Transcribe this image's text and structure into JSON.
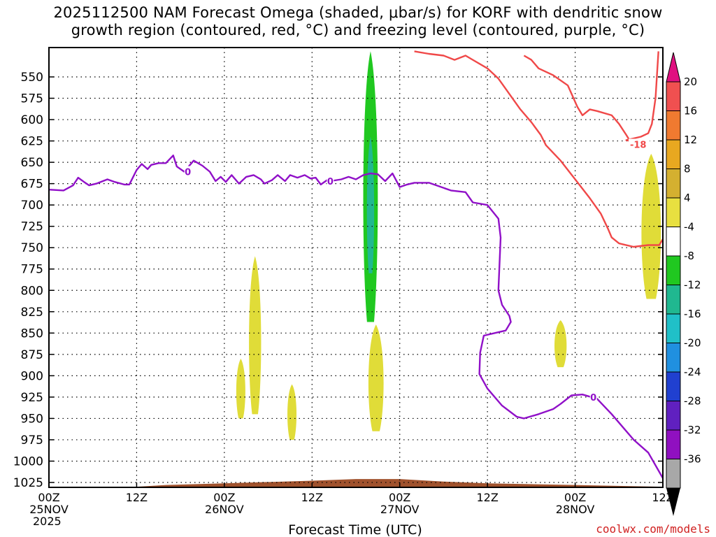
{
  "title": {
    "line1": "2025112500 NAM Forecast Omega (shaded, μbar/s) for KORF with dendritic snow",
    "line2": "growth region (contoured, red, °C) and freezing level (contoured, purple, °C)"
  },
  "credit": "coolwx.com/models",
  "chart_data": {
    "type": "contour",
    "title": "2025112500 NAM Forecast Omega (shaded, μbar/s) for KORF with dendritic snow growth region (contoured, red, °C) and freezing level (contoured, purple, °C)",
    "xlabel": "Forecast Time (UTC)",
    "ylabel": "",
    "xlim": [
      0,
      84
    ],
    "ylim": [
      1040,
      520
    ],
    "y_ticks": [
      550,
      575,
      600,
      625,
      650,
      675,
      700,
      725,
      750,
      775,
      800,
      825,
      850,
      875,
      900,
      925,
      950,
      975,
      1000,
      1025
    ],
    "x_ticks": [
      {
        "t": 0,
        "lines": [
          "00Z",
          "25NOV",
          "2025"
        ]
      },
      {
        "t": 12,
        "lines": [
          "12Z"
        ]
      },
      {
        "t": 24,
        "lines": [
          "00Z",
          "26NOV"
        ]
      },
      {
        "t": 36,
        "lines": [
          "12Z"
        ]
      },
      {
        "t": 48,
        "lines": [
          "00Z",
          "27NOV"
        ]
      },
      {
        "t": 60,
        "lines": [
          "12Z"
        ]
      },
      {
        "t": 72,
        "lines": [
          "00Z",
          "28NOV"
        ]
      },
      {
        "t": 84,
        "lines": [
          "12Z"
        ]
      }
    ],
    "colorbar": {
      "labels": [
        "20",
        "16",
        "12",
        "8",
        "4",
        "-4",
        "-8",
        "-12",
        "-16",
        "-20",
        "-24",
        "-28",
        "-32",
        "-36"
      ],
      "colors": [
        "#f05050",
        "#f07a30",
        "#e8a820",
        "#d4b030",
        "#e8e040",
        "#ffffff",
        "#20c820",
        "#20b890",
        "#20c0c8",
        "#2090e0",
        "#2040d0",
        "#6020c0",
        "#9010c0",
        "#a8a8a8"
      ],
      "top_arrow_color": "#e01080",
      "bottom_arrow_color": "#000000"
    },
    "series": [
      {
        "name": "Freezing level 0°C (purple)",
        "color": "#9010c8",
        "label": "0",
        "points": [
          [
            0,
            682
          ],
          [
            2,
            683
          ],
          [
            3.3,
            677
          ],
          [
            4,
            668
          ],
          [
            4.8,
            673
          ],
          [
            5.5,
            677
          ],
          [
            6.5,
            675
          ],
          [
            8,
            670
          ],
          [
            9,
            673
          ],
          [
            10.3,
            676
          ],
          [
            11,
            676
          ],
          [
            12,
            659
          ],
          [
            12.7,
            652
          ],
          [
            13.5,
            658
          ],
          [
            14,
            653
          ],
          [
            15,
            651
          ],
          [
            16,
            651
          ],
          [
            17,
            642
          ],
          [
            17.5,
            655
          ],
          [
            18.5,
            661
          ],
          [
            19.8,
            648
          ],
          [
            21,
            654
          ],
          [
            22,
            661
          ],
          [
            22.8,
            672
          ],
          [
            23.5,
            667
          ],
          [
            24.2,
            673
          ],
          [
            25,
            665
          ],
          [
            26,
            675
          ],
          [
            27,
            667
          ],
          [
            28,
            665
          ],
          [
            29,
            670
          ],
          [
            29.5,
            675
          ],
          [
            30.5,
            671
          ],
          [
            31.3,
            665
          ],
          [
            32.3,
            672
          ],
          [
            33,
            665
          ],
          [
            34,
            668
          ],
          [
            35,
            665
          ],
          [
            35.8,
            669
          ],
          [
            36.5,
            668
          ],
          [
            37.2,
            676
          ],
          [
            38.2,
            670
          ],
          [
            38.5,
            672
          ],
          [
            40,
            670
          ],
          [
            41,
            667
          ],
          [
            42,
            670
          ],
          [
            43,
            665
          ],
          [
            44,
            663
          ],
          [
            45,
            664
          ],
          [
            46,
            672
          ],
          [
            47,
            663
          ],
          [
            48,
            679
          ],
          [
            49,
            676
          ],
          [
            50,
            674
          ],
          [
            52,
            674
          ],
          [
            55,
            683
          ],
          [
            57,
            685
          ],
          [
            58,
            697
          ],
          [
            60,
            700
          ],
          [
            61.5,
            716
          ],
          [
            61.8,
            738
          ],
          [
            61.5,
            800
          ],
          [
            62,
            817
          ],
          [
            63,
            830
          ],
          [
            63.2,
            837
          ],
          [
            62.5,
            847
          ],
          [
            61,
            850
          ],
          [
            59.5,
            853
          ],
          [
            59,
            873
          ],
          [
            58.9,
            898
          ],
          [
            60,
            915
          ],
          [
            62,
            935
          ],
          [
            64,
            948
          ],
          [
            65,
            950
          ],
          [
            67,
            945
          ],
          [
            69,
            939
          ],
          [
            70,
            933
          ],
          [
            71.5,
            923
          ],
          [
            73,
            922
          ],
          [
            75,
            927
          ],
          [
            77,
            945
          ],
          [
            80,
            975
          ],
          [
            82,
            990
          ],
          [
            84,
            1020
          ]
        ]
      },
      {
        "name": "Dendritic growth -18°C (red) upper",
        "color": "#f04848",
        "label": "-18",
        "points": [
          [
            50,
            520
          ],
          [
            52,
            523
          ],
          [
            54,
            525
          ],
          [
            55.5,
            530
          ],
          [
            57,
            525
          ],
          [
            58,
            530
          ],
          [
            60,
            540
          ],
          [
            61.5,
            552
          ],
          [
            63,
            570
          ],
          [
            64.5,
            588
          ],
          [
            66,
            603
          ],
          [
            67.3,
            618
          ],
          [
            68,
            630
          ],
          [
            70,
            648
          ],
          [
            72,
            670
          ],
          [
            74,
            692
          ],
          [
            75.5,
            710
          ],
          [
            76.5,
            728
          ],
          [
            77,
            738
          ],
          [
            78,
            745
          ],
          [
            80,
            749
          ],
          [
            82,
            747
          ],
          [
            83.5,
            747
          ],
          [
            84,
            740
          ]
        ]
      },
      {
        "name": "Dendritic growth -18°C (red) lower",
        "color": "#f04848",
        "points": [
          [
            65,
            525
          ],
          [
            66,
            530
          ],
          [
            67,
            540
          ],
          [
            69,
            548
          ],
          [
            71,
            560
          ],
          [
            72.3,
            585
          ],
          [
            73,
            595
          ],
          [
            74,
            588
          ],
          [
            75,
            590
          ],
          [
            77,
            595
          ],
          [
            78,
            605
          ],
          [
            79,
            618
          ],
          [
            79.5,
            625
          ],
          [
            79,
            624
          ],
          [
            81,
            620
          ],
          [
            82,
            616
          ],
          [
            82.5,
            605
          ],
          [
            83,
            575
          ],
          [
            83.4,
            520
          ]
        ]
      }
    ],
    "shaded_regions": [
      {
        "value_range": "-8 to -4",
        "color": "#20c820",
        "time_range": [
          42.8,
          45.2
        ],
        "pressure_range": [
          520,
          837
        ]
      },
      {
        "value_range": "-12 to -8",
        "color": "#20b890",
        "time_range": [
          43.4,
          44.6
        ],
        "pressure_range": [
          620,
          780
        ]
      },
      {
        "value_range": "4 to 8",
        "color": "#e0dc38",
        "time_range": [
          25.5,
          27
        ],
        "pressure_range": [
          880,
          950
        ]
      },
      {
        "value_range": "4 to 8",
        "color": "#e0dc38",
        "time_range": [
          27.2,
          29.2
        ],
        "pressure_range": [
          760,
          945
        ]
      },
      {
        "value_range": "4 to 8",
        "color": "#e0dc38",
        "time_range": [
          32.5,
          34
        ],
        "pressure_range": [
          910,
          975
        ]
      },
      {
        "value_range": "4 to 8",
        "color": "#e0dc38",
        "time_range": [
          43.5,
          46
        ],
        "pressure_range": [
          840,
          965
        ]
      },
      {
        "value_range": "4 to 8",
        "color": "#e0dc38",
        "time_range": [
          69,
          71
        ],
        "pressure_range": [
          835,
          890
        ]
      },
      {
        "value_range": "4 to 8",
        "color": "#e0dc38",
        "time_range": [
          80.8,
          84
        ],
        "pressure_range": [
          640,
          810
        ]
      }
    ],
    "terrain": {
      "color": "#a0522d",
      "surface_pressure": [
        [
          0,
          1030
        ],
        [
          3,
          1030
        ],
        [
          12,
          1030
        ],
        [
          16,
          1028
        ],
        [
          24,
          1026
        ],
        [
          36,
          1023
        ],
        [
          42,
          1021
        ],
        [
          48,
          1021
        ],
        [
          54,
          1024
        ],
        [
          60,
          1026
        ],
        [
          72,
          1028
        ],
        [
          84,
          1030
        ]
      ]
    }
  }
}
